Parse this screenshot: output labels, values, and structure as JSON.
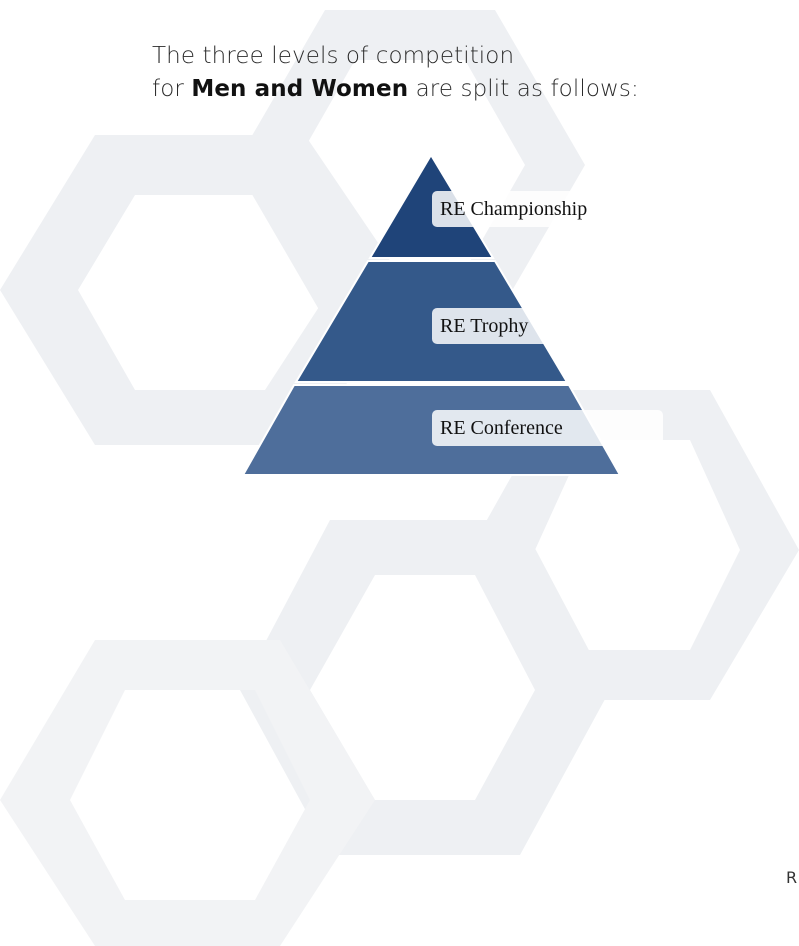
{
  "intro": {
    "line1": "The three levels of competition",
    "line2_prefix": "for ",
    "line2_bold": "Men and Women",
    "line2_suffix": " are split as follows:"
  },
  "pyramid": {
    "tiers": [
      {
        "label": "RE Championship",
        "color": "#1f4479"
      },
      {
        "label": "RE Trophy",
        "color": "#34598a"
      },
      {
        "label": "RE Conference",
        "color": "#4e6e9b"
      }
    ]
  },
  "edge_text": "R",
  "colors": {
    "background_hexagons": "#f2f3f5"
  }
}
